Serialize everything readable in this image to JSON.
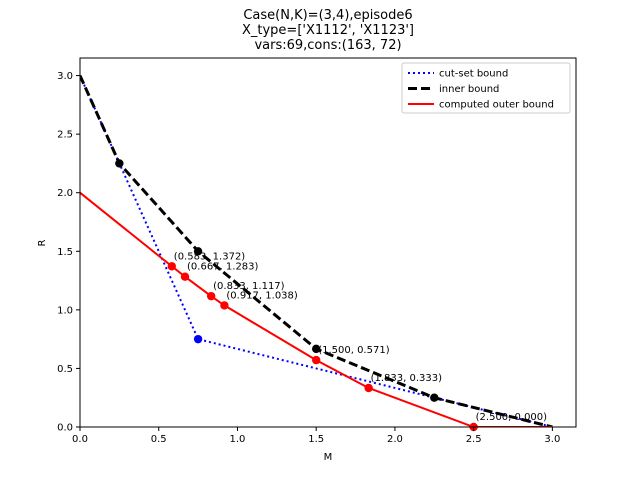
{
  "chart_data": {
    "type": "line",
    "title_lines": [
      "Case(N,K)=(3,4),episode6",
      "X_type=['X1112', 'X1123']",
      "vars:69,cons:(163, 72)"
    ],
    "xlabel": "M",
    "ylabel": "R",
    "xlim": [
      0,
      3.15
    ],
    "ylim": [
      0,
      3.15
    ],
    "xticks": [
      "0.0",
      "0.5",
      "1.0",
      "1.5",
      "2.0",
      "2.5",
      "3.0"
    ],
    "yticks": [
      "0.0",
      "0.5",
      "1.0",
      "1.5",
      "2.0",
      "2.5",
      "3.0"
    ],
    "grid": false,
    "legend_position": "top-right",
    "series": [
      {
        "name": "cut-set bound",
        "color": "#0000ff",
        "style": "dotted",
        "x": [
          0,
          0.25,
          0.75,
          2.25,
          3.0
        ],
        "y": [
          3.0,
          2.25,
          0.75,
          0.25,
          0.0
        ],
        "markers_x": [
          0.75
        ],
        "markers_y": [
          0.75
        ]
      },
      {
        "name": "inner bound",
        "color": "#000000",
        "style": "dashed",
        "x": [
          0,
          0.25,
          0.75,
          1.5,
          2.25,
          3.0
        ],
        "y": [
          3.0,
          2.25,
          1.5,
          0.667,
          0.25,
          0.0
        ],
        "markers_x": [
          0.25,
          0.75,
          1.5,
          2.25
        ],
        "markers_y": [
          2.25,
          1.5,
          0.667,
          0.25
        ]
      },
      {
        "name": "computed outer bound",
        "color": "#ff0000",
        "style": "solid",
        "x": [
          0,
          0.583,
          0.667,
          0.833,
          0.917,
          1.5,
          1.833,
          2.5,
          3.0
        ],
        "y": [
          2.0,
          1.372,
          1.283,
          1.117,
          1.038,
          0.571,
          0.333,
          0.0,
          0.0
        ],
        "markers_x": [
          0.583,
          0.667,
          0.833,
          0.917,
          1.5,
          1.833,
          2.5
        ],
        "markers_y": [
          1.372,
          1.283,
          1.117,
          1.038,
          0.571,
          0.333,
          0.0
        ]
      }
    ],
    "annotations": [
      {
        "x": 0.583,
        "y": 1.372,
        "text": "(0.583, 1.372)"
      },
      {
        "x": 0.667,
        "y": 1.283,
        "text": "(0.667, 1.283)"
      },
      {
        "x": 0.833,
        "y": 1.117,
        "text": "(0.833, 1.117)"
      },
      {
        "x": 0.917,
        "y": 1.038,
        "text": "(0.917, 1.038)"
      },
      {
        "x": 1.5,
        "y": 0.571,
        "text": "(1.500, 0.571)"
      },
      {
        "x": 1.833,
        "y": 0.333,
        "text": "(1.833, 0.333)"
      },
      {
        "x": 2.5,
        "y": 0.0,
        "text": "(2.500, 0.000)"
      }
    ]
  }
}
